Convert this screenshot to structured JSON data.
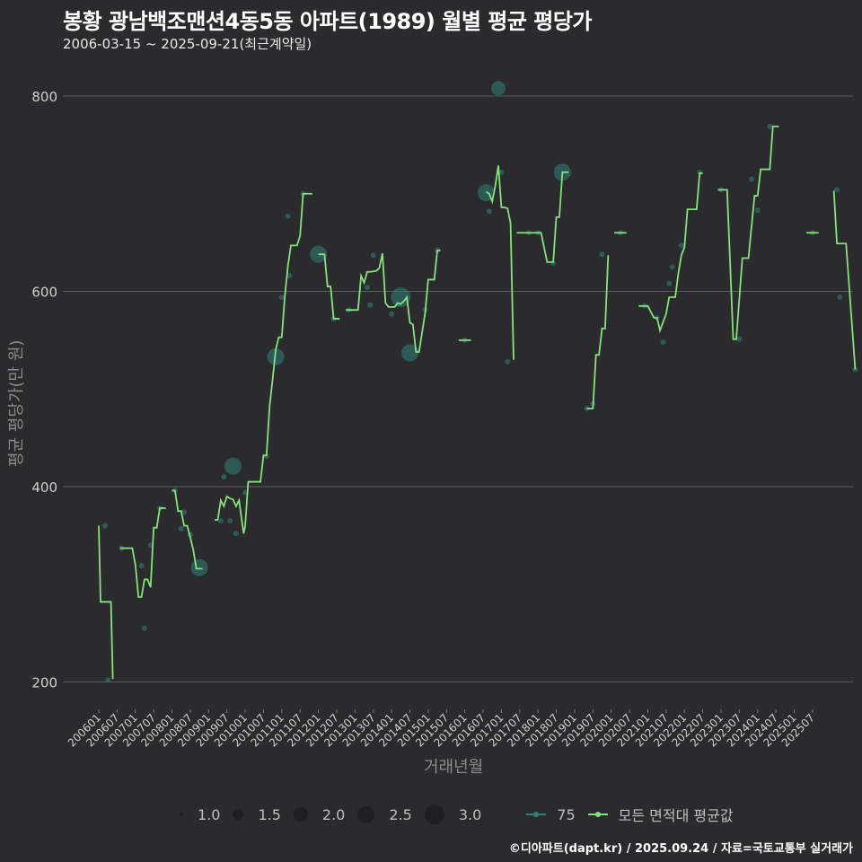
{
  "header": {
    "title": "봉황 광남백조맨션4동5동 아파트(1989) 월별 평균 평당가",
    "subtitle": "2006-03-15 ~ 2025-09-21(최근계약일)"
  },
  "footer": "©디아파트(dapt.kr) / 2025.09.24 / 자료=국토교통부 실거래가",
  "colors": {
    "background": "#2b2b2d",
    "grid": "#5c5c5e",
    "avg_line": "#86e07e",
    "point_75": "#2f7f7a",
    "axis_text": "#d0d0d0",
    "axis_title": "#8a8a8a"
  },
  "legend": {
    "sizes": [
      {
        "label": "1.0",
        "r": 2
      },
      {
        "label": "1.5",
        "r": 6
      },
      {
        "label": "2.0",
        "r": 8
      },
      {
        "label": "2.5",
        "r": 9.5
      },
      {
        "label": "3.0",
        "r": 11
      }
    ],
    "series": [
      {
        "label": "75",
        "color": "#2f7f7a"
      },
      {
        "label": "모든 면적대 평균값",
        "color": "#86e07e"
      }
    ]
  },
  "chart_data": {
    "type": "line",
    "title": "봉황 광남백조맨션4동5동 아파트(1989) 월별 평균 평당가",
    "subtitle": "2006-03-15 ~ 2025-09-21(최근계약일)",
    "xlabel": "거래년월",
    "ylabel": "평균 평당가(만 원)",
    "ylim": [
      190,
      820
    ],
    "yticks": [
      200,
      400,
      600,
      800
    ],
    "grid": true,
    "legend_position": "bottom",
    "x_tick_labels": [
      "200601",
      "200607",
      "200701",
      "200707",
      "200801",
      "200807",
      "200901",
      "200907",
      "201001",
      "201007",
      "201101",
      "201107",
      "201201",
      "201207",
      "201301",
      "201307",
      "201401",
      "201407",
      "201501",
      "201507",
      "201601",
      "201607",
      "201701",
      "201707",
      "201801",
      "201807",
      "201901",
      "201907",
      "202001",
      "202007",
      "202101",
      "202107",
      "202201",
      "202207",
      "202301",
      "202307",
      "202401",
      "202407",
      "202501",
      "202507"
    ],
    "x_units": "months since 2006-01",
    "series": [
      {
        "name": "모든 면적대 평균값",
        "segments": [
          [
            [
              0,
              360
            ],
            [
              0.6,
              282
            ],
            [
              4,
              282
            ],
            [
              4.6,
              203
            ]
          ],
          [
            [
              7,
              337
            ],
            [
              11,
              337
            ],
            [
              12,
              320
            ],
            [
              13,
              287
            ],
            [
              14,
              287
            ],
            [
              15,
              305
            ],
            [
              16,
              305
            ],
            [
              17,
              297
            ],
            [
              18,
              358
            ],
            [
              19,
              358
            ],
            [
              20,
              378
            ],
            [
              22,
              378
            ]
          ],
          [
            [
              24,
              396
            ],
            [
              25,
              396
            ],
            [
              26,
              375
            ],
            [
              27,
              375
            ],
            [
              28,
              360
            ],
            [
              29,
              360
            ],
            [
              30,
              348
            ],
            [
              31,
              335
            ],
            [
              32,
              316
            ],
            [
              34,
              316
            ]
          ],
          [
            [
              38,
              366
            ],
            [
              39,
              366
            ],
            [
              40,
              386
            ],
            [
              41,
              380
            ],
            [
              42,
              390
            ],
            [
              43,
              388
            ],
            [
              44,
              387
            ],
            [
              45,
              380
            ],
            [
              46,
              386
            ],
            [
              47,
              363
            ],
            [
              47.5,
              352
            ],
            [
              48,
              360
            ],
            [
              49,
              405
            ],
            [
              50,
              405
            ],
            [
              53,
              405
            ],
            [
              54,
              432
            ],
            [
              55,
              432
            ],
            [
              56,
              482
            ],
            [
              57,
              510
            ],
            [
              58,
              540
            ],
            [
              59,
              553
            ],
            [
              60,
              553
            ],
            [
              61,
              595
            ],
            [
              62,
              626
            ],
            [
              63,
              647
            ],
            [
              64,
              647
            ],
            [
              65,
              647
            ],
            [
              66,
              657
            ],
            [
              67,
              700
            ],
            [
              70,
              700
            ]
          ],
          [
            [
              72,
              638
            ],
            [
              74,
              638
            ],
            [
              75,
              605
            ],
            [
              76,
              605
            ],
            [
              77,
              572
            ],
            [
              79,
              572
            ]
          ],
          [
            [
              81,
              581
            ],
            [
              85,
              581
            ],
            [
              86,
              616
            ],
            [
              87,
              609
            ],
            [
              88,
              620
            ],
            [
              89,
              620
            ],
            [
              91,
              621
            ],
            [
              92,
              624
            ],
            [
              93,
              639
            ],
            [
              94,
              588
            ],
            [
              95,
              584
            ],
            [
              97,
              584
            ],
            [
              98,
              588
            ],
            [
              99,
              587
            ],
            [
              100,
              590
            ],
            [
              101,
              594
            ],
            [
              102,
              568
            ],
            [
              103,
              566
            ],
            [
              104,
              538
            ],
            [
              105,
              538
            ],
            [
              106,
              558
            ],
            [
              107,
              578
            ],
            [
              108,
              612
            ],
            [
              110,
              612
            ],
            [
              111,
              642
            ],
            [
              112,
              642
            ]
          ],
          [
            [
              118,
              550
            ],
            [
              122,
              550
            ]
          ],
          [
            [
              127,
              702
            ],
            [
              128,
              700
            ],
            [
              129,
              692
            ],
            [
              130,
              708
            ],
            [
              131,
              729
            ],
            [
              132,
              686
            ],
            [
              133,
              686
            ],
            [
              134,
              685
            ],
            [
              135,
              670
            ],
            [
              136,
              530
            ]
          ],
          [
            [
              137,
              660
            ],
            [
              145,
              660
            ],
            [
              147,
              630
            ],
            [
              149,
              630
            ],
            [
              150,
              676
            ],
            [
              151,
              676
            ],
            [
              152,
              722
            ],
            [
              154,
              722
            ]
          ],
          [
            [
              160,
              480
            ],
            [
              162,
              480
            ],
            [
              163,
              535
            ],
            [
              164,
              535
            ],
            [
              165,
              562
            ],
            [
              166,
              562
            ],
            [
              167,
              637
            ]
          ],
          [
            [
              169,
              660
            ],
            [
              173,
              660
            ]
          ],
          [
            [
              177,
              585
            ],
            [
              180,
              585
            ],
            [
              182,
              573
            ],
            [
              183,
              573
            ],
            [
              184,
              560
            ],
            [
              186,
              577
            ],
            [
              187,
              594
            ],
            [
              189,
              594
            ],
            [
              190,
              618
            ],
            [
              191,
              637
            ],
            [
              192,
              645
            ],
            [
              193,
              684
            ],
            [
              196,
              684
            ],
            [
              197,
              721
            ],
            [
              198,
              721
            ]
          ],
          [
            [
              203,
              704
            ],
            [
              206,
              704
            ],
            [
              208,
              551
            ],
            [
              209,
              551
            ],
            [
              211,
              634
            ],
            [
              213,
              634
            ],
            [
              215,
              698
            ],
            [
              216,
              698
            ],
            [
              217,
              725
            ],
            [
              220,
              725
            ],
            [
              221,
              769
            ],
            [
              223,
              769
            ]
          ],
          [
            [
              232,
              660
            ],
            [
              236,
              660
            ]
          ],
          [
            [
              241,
              703
            ],
            [
              242,
              649
            ],
            [
              245,
              649
            ],
            [
              248,
              520
            ]
          ]
        ]
      },
      {
        "name": "75",
        "points": [
          {
            "x": 2,
            "y": 360,
            "size": 1
          },
          {
            "x": 3,
            "y": 202,
            "size": 1
          },
          {
            "x": 7.5,
            "y": 337,
            "size": 1
          },
          {
            "x": 14,
            "y": 319,
            "size": 1
          },
          {
            "x": 15,
            "y": 255,
            "size": 1
          },
          {
            "x": 17,
            "y": 340,
            "size": 1
          },
          {
            "x": 20,
            "y": 378,
            "size": 1
          },
          {
            "x": 25,
            "y": 396,
            "size": 1
          },
          {
            "x": 27,
            "y": 357,
            "size": 1
          },
          {
            "x": 28,
            "y": 374,
            "size": 1
          },
          {
            "x": 30,
            "y": 351,
            "size": 1
          },
          {
            "x": 33,
            "y": 317,
            "size": 2.5
          },
          {
            "x": 40,
            "y": 365,
            "size": 1
          },
          {
            "x": 41,
            "y": 410,
            "size": 1
          },
          {
            "x": 43,
            "y": 365,
            "size": 1
          },
          {
            "x": 44,
            "y": 421,
            "size": 2.5
          },
          {
            "x": 45,
            "y": 352,
            "size": 1
          },
          {
            "x": 48,
            "y": 394,
            "size": 1
          },
          {
            "x": 55,
            "y": 431,
            "size": 1
          },
          {
            "x": 58,
            "y": 533,
            "size": 2.5
          },
          {
            "x": 60,
            "y": 594,
            "size": 1
          },
          {
            "x": 62,
            "y": 677,
            "size": 1
          },
          {
            "x": 62.5,
            "y": 616,
            "size": 1
          },
          {
            "x": 67,
            "y": 700,
            "size": 1
          },
          {
            "x": 72,
            "y": 638,
            "size": 2.5
          },
          {
            "x": 77,
            "y": 572,
            "size": 1
          },
          {
            "x": 82,
            "y": 581,
            "size": 1
          },
          {
            "x": 88,
            "y": 604,
            "size": 1
          },
          {
            "x": 90,
            "y": 637,
            "size": 1
          },
          {
            "x": 89,
            "y": 586,
            "size": 1
          },
          {
            "x": 96,
            "y": 577,
            "size": 1
          },
          {
            "x": 98,
            "y": 587,
            "size": 1
          },
          {
            "x": 99,
            "y": 594,
            "size": 3
          },
          {
            "x": 102,
            "y": 537,
            "size": 2.5
          },
          {
            "x": 107,
            "y": 581,
            "size": 1
          },
          {
            "x": 111,
            "y": 642,
            "size": 1
          },
          {
            "x": 120,
            "y": 550,
            "size": 1
          },
          {
            "x": 127,
            "y": 701,
            "size": 2.5
          },
          {
            "x": 128,
            "y": 682,
            "size": 1
          },
          {
            "x": 131,
            "y": 808,
            "size": 2
          },
          {
            "x": 132,
            "y": 722,
            "size": 1
          },
          {
            "x": 134,
            "y": 528,
            "size": 1
          },
          {
            "x": 141,
            "y": 660,
            "size": 1
          },
          {
            "x": 144,
            "y": 660,
            "size": 1
          },
          {
            "x": 149,
            "y": 629,
            "size": 1
          },
          {
            "x": 152,
            "y": 722,
            "size": 2.5
          },
          {
            "x": 160,
            "y": 480,
            "size": 1
          },
          {
            "x": 162,
            "y": 485,
            "size": 1
          },
          {
            "x": 165,
            "y": 638,
            "size": 1
          },
          {
            "x": 171,
            "y": 660,
            "size": 1
          },
          {
            "x": 179,
            "y": 585,
            "size": 1
          },
          {
            "x": 183,
            "y": 573,
            "size": 1
          },
          {
            "x": 185,
            "y": 548,
            "size": 1
          },
          {
            "x": 187,
            "y": 608,
            "size": 1
          },
          {
            "x": 188,
            "y": 625,
            "size": 1
          },
          {
            "x": 191,
            "y": 647,
            "size": 1
          },
          {
            "x": 197,
            "y": 722,
            "size": 1
          },
          {
            "x": 204,
            "y": 704,
            "size": 1
          },
          {
            "x": 210,
            "y": 551,
            "size": 1
          },
          {
            "x": 214,
            "y": 715,
            "size": 1
          },
          {
            "x": 216,
            "y": 683,
            "size": 1
          },
          {
            "x": 220,
            "y": 769,
            "size": 1
          },
          {
            "x": 234,
            "y": 660,
            "size": 1
          },
          {
            "x": 242,
            "y": 704,
            "size": 1
          },
          {
            "x": 243,
            "y": 594,
            "size": 1
          },
          {
            "x": 248,
            "y": 520,
            "size": 1
          }
        ]
      }
    ]
  }
}
